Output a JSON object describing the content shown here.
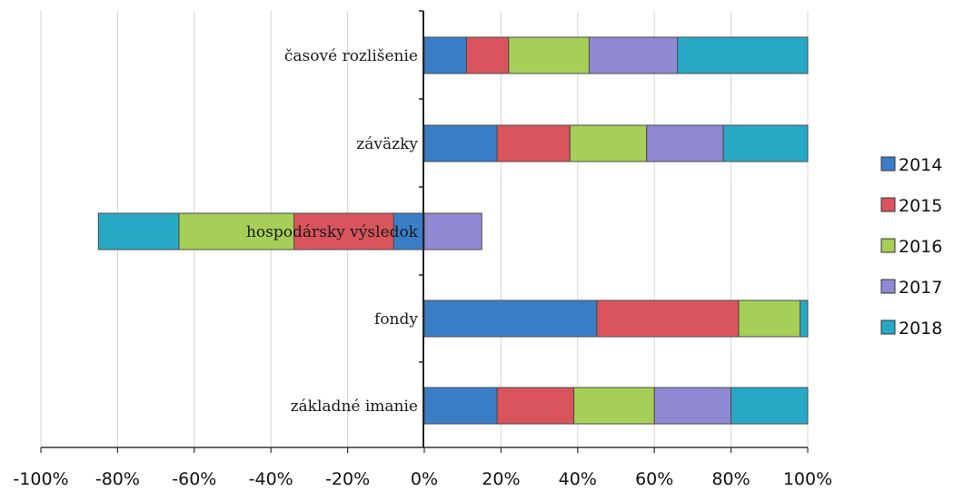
{
  "chart_data": {
    "type": "bar",
    "orientation": "horizontal",
    "stacked": true,
    "title": "",
    "xlabel": "",
    "ylabel": "",
    "xlim": [
      -1.0,
      1.0
    ],
    "x_ticks": [
      -1.0,
      -0.8,
      -0.6,
      -0.4,
      -0.2,
      0,
      0.2,
      0.4,
      0.6,
      0.8,
      1.0
    ],
    "x_tick_labels": [
      "-100%",
      "-80%",
      "-60%",
      "-40%",
      "-20%",
      "0%",
      "20%",
      "40%",
      "60%",
      "80%",
      "100%"
    ],
    "grid": "vertical",
    "legend_position": "right",
    "categories": [
      "časové rozlišenie",
      "záväzky",
      "hospodársky výsledok",
      "fondy",
      "základné imanie"
    ],
    "series": [
      {
        "name": "2014",
        "color": "#3a7ec8",
        "values": [
          0.11,
          0.19,
          -0.08,
          0.45,
          0.19
        ]
      },
      {
        "name": "2015",
        "color": "#d9545c",
        "values": [
          0.11,
          0.19,
          -0.26,
          0.37,
          0.2
        ]
      },
      {
        "name": "2016",
        "color": "#a6cf58",
        "values": [
          0.21,
          0.2,
          -0.3,
          0.16,
          0.21
        ]
      },
      {
        "name": "2017",
        "color": "#8f89d3",
        "values": [
          0.23,
          0.2,
          0.15,
          0.0,
          0.2
        ]
      },
      {
        "name": "2018",
        "color": "#27a9c5",
        "values": [
          0.34,
          0.22,
          -0.21,
          0.02,
          0.2
        ]
      }
    ]
  }
}
